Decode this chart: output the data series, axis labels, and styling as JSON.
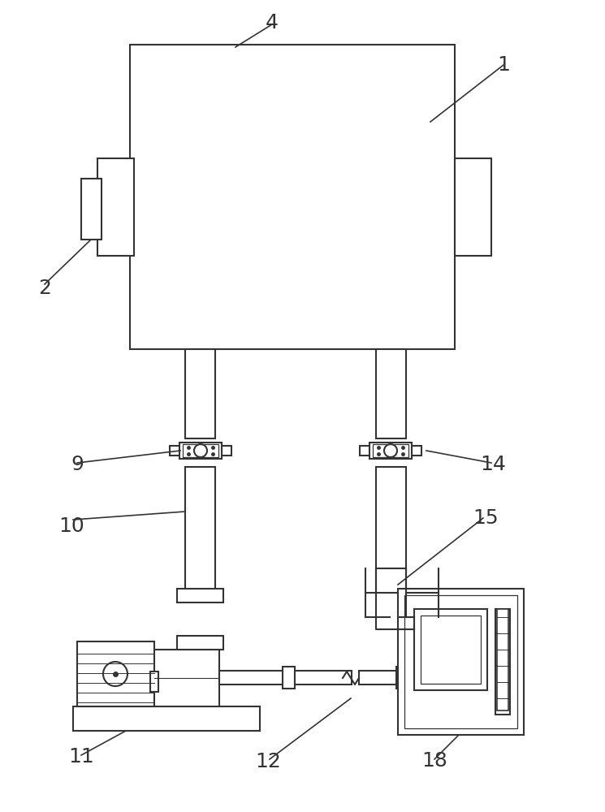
{
  "bg_color": "#ffffff",
  "line_color": "#333333",
  "line_width": 1.5,
  "labels": {
    "1": [
      0.83,
      0.3,
      "1"
    ],
    "2": [
      0.08,
      0.38,
      "2"
    ],
    "4": [
      0.45,
      0.04,
      "4"
    ],
    "9": [
      0.13,
      0.57,
      "9"
    ],
    "10": [
      0.12,
      0.65,
      "10"
    ],
    "11": [
      0.12,
      0.88,
      "11"
    ],
    "12": [
      0.44,
      0.88,
      "12"
    ],
    "14": [
      0.82,
      0.57,
      "14"
    ],
    "15": [
      0.82,
      0.63,
      "15"
    ],
    "18": [
      0.72,
      0.9,
      "18"
    ]
  }
}
